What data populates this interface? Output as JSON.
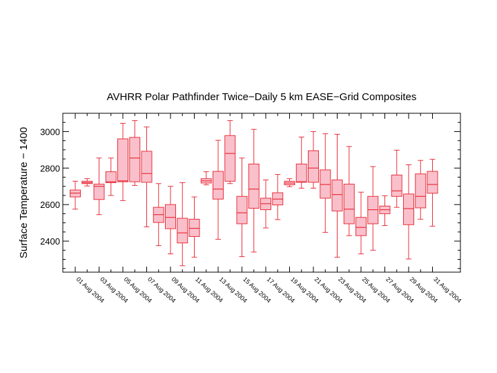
{
  "chart_data": {
    "type": "box",
    "title": "AVHRR Polar Pathfinder Twice−Daily 5 km EASE−Grid Composites",
    "xlabel": "",
    "ylabel": "Surface Temperature − 1400",
    "ylim": [
      2230,
      3100
    ],
    "yticks": [
      2400,
      2600,
      2800,
      3000
    ],
    "ytick_labels": [
      "2400",
      "2600",
      "2800",
      "3000"
    ],
    "grid": false,
    "colors": {
      "box_fill": "#f9c0cb",
      "box_stroke": "#e8303c",
      "axis": "#000000"
    },
    "xtick_labels": [
      "01 Aug 2004",
      "03 Aug 2004",
      "05 Aug 2004",
      "07 Aug 2004",
      "09 Aug 2004",
      "11 Aug 2004",
      "13 Aug 2004",
      "15 Aug 2004",
      "17 Aug 2004",
      "19 Aug 2004",
      "21 Aug 2004",
      "23 Aug 2004",
      "25 Aug 2004",
      "27 Aug 2004",
      "29 Aug 2004",
      "31 Aug 2004"
    ],
    "boxes": [
      {
        "min": 2575,
        "q1": 2642,
        "median": 2663,
        "q3": 2680,
        "max": 2728
      },
      {
        "min": 2702,
        "q1": 2715,
        "median": 2720,
        "q3": 2728,
        "max": 2742
      },
      {
        "min": 2545,
        "q1": 2628,
        "median": 2700,
        "q3": 2712,
        "max": 2855
      },
      {
        "min": 2650,
        "q1": 2720,
        "median": 2725,
        "q3": 2780,
        "max": 2855
      },
      {
        "min": 2622,
        "q1": 2725,
        "median": 2730,
        "q3": 2960,
        "max": 3045
      },
      {
        "min": 2705,
        "q1": 2725,
        "median": 2855,
        "q3": 2968,
        "max": 3060
      },
      {
        "min": 2478,
        "q1": 2722,
        "median": 2770,
        "q3": 2892,
        "max": 3025
      },
      {
        "min": 2375,
        "q1": 2502,
        "median": 2545,
        "q3": 2585,
        "max": 2715
      },
      {
        "min": 2330,
        "q1": 2468,
        "median": 2530,
        "q3": 2600,
        "max": 2700
      },
      {
        "min": 2265,
        "q1": 2390,
        "median": 2445,
        "q3": 2525,
        "max": 2720
      },
      {
        "min": 2312,
        "q1": 2425,
        "median": 2470,
        "q3": 2520,
        "max": 2642
      },
      {
        "min": 2708,
        "q1": 2718,
        "median": 2730,
        "q3": 2742,
        "max": 2780
      },
      {
        "min": 2410,
        "q1": 2630,
        "median": 2685,
        "q3": 2782,
        "max": 2952
      },
      {
        "min": 2715,
        "q1": 2728,
        "median": 2880,
        "q3": 2978,
        "max": 3060
      },
      {
        "min": 2315,
        "q1": 2495,
        "median": 2555,
        "q3": 2645,
        "max": 2855
      },
      {
        "min": 2340,
        "q1": 2580,
        "median": 2685,
        "q3": 2822,
        "max": 3012
      },
      {
        "min": 2472,
        "q1": 2572,
        "median": 2605,
        "q3": 2635,
        "max": 2735
      },
      {
        "min": 2518,
        "q1": 2598,
        "median": 2630,
        "q3": 2665,
        "max": 2765
      },
      {
        "min": 2698,
        "q1": 2708,
        "median": 2718,
        "q3": 2728,
        "max": 2742
      },
      {
        "min": 2690,
        "q1": 2722,
        "median": 2725,
        "q3": 2822,
        "max": 2970
      },
      {
        "min": 2690,
        "q1": 2722,
        "median": 2800,
        "q3": 2895,
        "max": 3000
      },
      {
        "min": 2448,
        "q1": 2635,
        "median": 2710,
        "q3": 2790,
        "max": 2988
      },
      {
        "min": 2312,
        "q1": 2565,
        "median": 2655,
        "q3": 2735,
        "max": 2985
      },
      {
        "min": 2430,
        "q1": 2495,
        "median": 2575,
        "q3": 2712,
        "max": 2918
      },
      {
        "min": 2330,
        "q1": 2430,
        "median": 2475,
        "q3": 2530,
        "max": 2668
      },
      {
        "min": 2350,
        "q1": 2495,
        "median": 2572,
        "q3": 2645,
        "max": 2808
      },
      {
        "min": 2485,
        "q1": 2550,
        "median": 2572,
        "q3": 2592,
        "max": 2648
      },
      {
        "min": 2585,
        "q1": 2645,
        "median": 2675,
        "q3": 2762,
        "max": 2898
      },
      {
        "min": 2302,
        "q1": 2490,
        "median": 2578,
        "q3": 2658,
        "max": 2818
      },
      {
        "min": 2520,
        "q1": 2582,
        "median": 2645,
        "q3": 2768,
        "max": 2842
      },
      {
        "min": 2482,
        "q1": 2662,
        "median": 2710,
        "q3": 2782,
        "max": 2848
      }
    ]
  }
}
